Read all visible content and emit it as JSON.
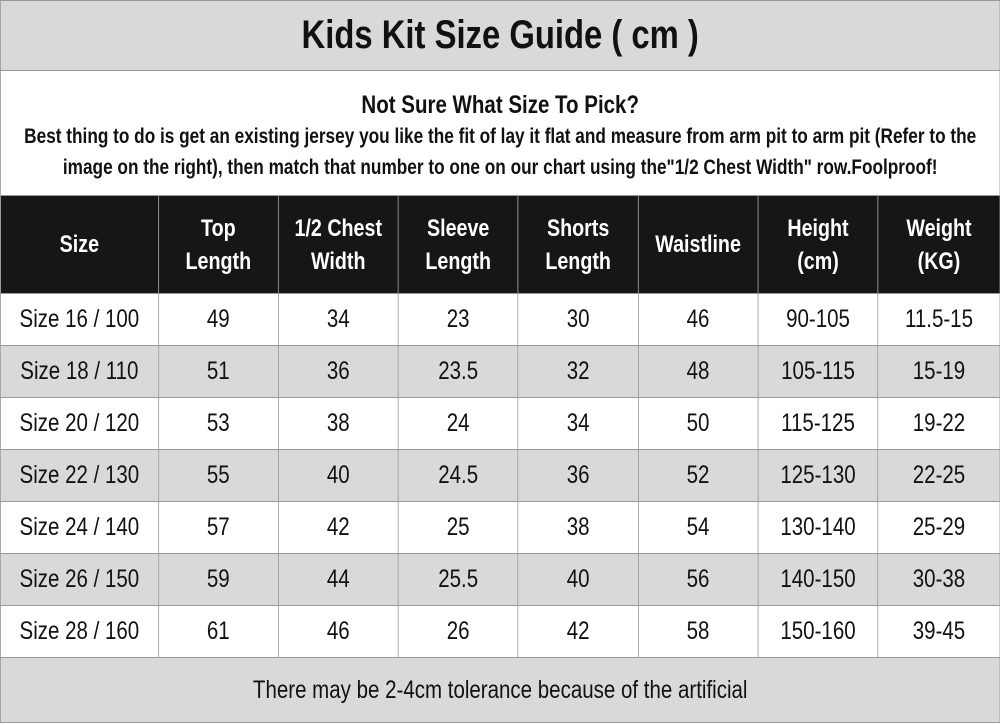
{
  "title": "Kids Kit Size Guide ( cm )",
  "intro": {
    "question": "Not Sure What Size To Pick?",
    "text": "Best thing to do is get an existing jersey you like the fit of lay it flat and measure from arm pit to arm pit (Refer to the image on the right), then match that number to one on our chart using the\"1/2 Chest Width\" row.Foolproof!"
  },
  "table": {
    "headers": [
      "Size",
      "Top\nLength",
      "1/2 Chest\nWidth",
      "Sleeve\nLength",
      "Shorts\nLength",
      "Waistline",
      "Height\n(cm)",
      "Weight\n(KG)"
    ],
    "rows": [
      [
        "Size 16 / 100",
        "49",
        "34",
        "23",
        "30",
        "46",
        "90-105",
        "11.5-15"
      ],
      [
        "Size 18 / 110",
        "51",
        "36",
        "23.5",
        "32",
        "48",
        "105-115",
        "15-19"
      ],
      [
        "Size 20 / 120",
        "53",
        "38",
        "24",
        "34",
        "50",
        "115-125",
        "19-22"
      ],
      [
        "Size 22 / 130",
        "55",
        "40",
        "24.5",
        "36",
        "52",
        "125-130",
        "22-25"
      ],
      [
        "Size 24 / 140",
        "57",
        "42",
        "25",
        "38",
        "54",
        "130-140",
        "25-29"
      ],
      [
        "Size 26 / 150",
        "59",
        "44",
        "25.5",
        "40",
        "56",
        "140-150",
        "30-38"
      ],
      [
        "Size 28 / 160",
        "61",
        "46",
        "26",
        "42",
        "58",
        "150-160",
        "39-45"
      ]
    ]
  },
  "footer": "There may be 2-4cm tolerance because of the artificial",
  "colors": {
    "header_bg": "#161616",
    "stripe": "#d9d9d9",
    "border": "#999999"
  }
}
